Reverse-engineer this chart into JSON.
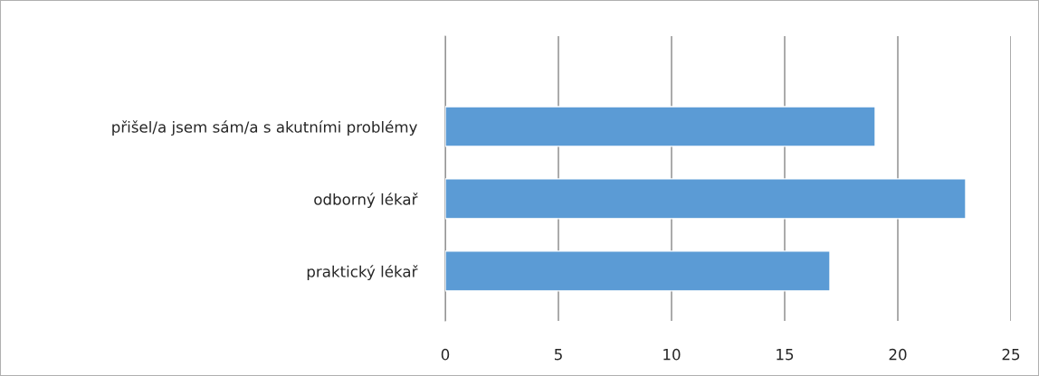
{
  "chart_data": {
    "type": "bar",
    "orientation": "horizontal",
    "categories": [
      "přišel/a jsem sám/a s akutními problémy",
      "odborný lékař",
      "praktický lékař"
    ],
    "values": [
      19,
      23,
      17
    ],
    "color": "#5b9bd5",
    "xlim": [
      0,
      25
    ],
    "xticks": [
      0,
      5,
      10,
      15,
      20,
      25
    ],
    "grid": "x",
    "legend": false
  }
}
